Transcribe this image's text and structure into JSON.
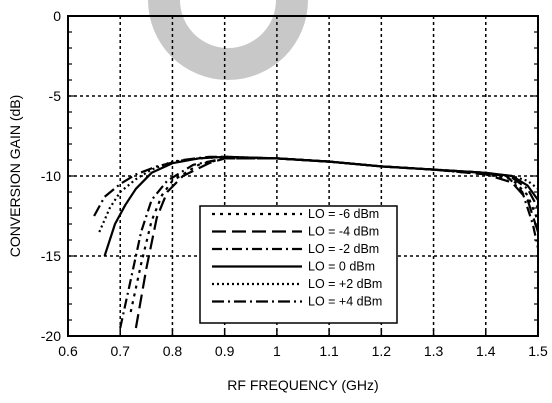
{
  "chart_data": {
    "type": "line",
    "title": "",
    "xlabel": "RF FREQUENCY (GHz)",
    "ylabel": "CONVERSION GAIN (dB)",
    "xlim": [
      0.6,
      1.5
    ],
    "ylim": [
      -20,
      0
    ],
    "x_ticks": [
      0.6,
      0.7,
      0.8,
      0.9,
      1,
      1.1,
      1.2,
      1.3,
      1.4,
      1.5
    ],
    "x_tick_labels": [
      "0.6",
      "0.7",
      "0.8",
      "0.9",
      "1",
      "1.1",
      "1.2",
      "1.3",
      "1.4",
      "1.5"
    ],
    "y_ticks": [
      0,
      -5,
      -10,
      -15,
      -20
    ],
    "y_tick_labels": [
      "0",
      "-5",
      "-10",
      "-15",
      "-20"
    ],
    "grid": true,
    "legend_position": "lower-center",
    "watermark_color": "#c8c8c8",
    "series": [
      {
        "name": "LO =  -6 dBm",
        "dash": "3,5",
        "points": [
          [
            0.72,
            -18.5
          ],
          [
            0.74,
            -15.5
          ],
          [
            0.76,
            -12.8
          ],
          [
            0.78,
            -11.2
          ],
          [
            0.8,
            -10.3
          ],
          [
            0.85,
            -9.3
          ],
          [
            0.9,
            -8.9
          ],
          [
            1.0,
            -8.9
          ],
          [
            1.1,
            -9.1
          ],
          [
            1.2,
            -9.4
          ],
          [
            1.3,
            -9.6
          ],
          [
            1.4,
            -9.9
          ],
          [
            1.45,
            -10.2
          ],
          [
            1.48,
            -11.2
          ],
          [
            1.5,
            -12.8
          ]
        ]
      },
      {
        "name": "LO =  -4 dBm",
        "dash": "14,6",
        "points": [
          [
            0.73,
            -19.5
          ],
          [
            0.75,
            -15.8
          ],
          [
            0.77,
            -12.6
          ],
          [
            0.79,
            -11.0
          ],
          [
            0.82,
            -10.0
          ],
          [
            0.87,
            -9.2
          ],
          [
            0.9,
            -8.9
          ],
          [
            1.0,
            -8.9
          ],
          [
            1.1,
            -9.1
          ],
          [
            1.2,
            -9.4
          ],
          [
            1.3,
            -9.6
          ],
          [
            1.4,
            -9.9
          ],
          [
            1.45,
            -10.4
          ],
          [
            1.48,
            -11.5
          ],
          [
            1.5,
            -13.5
          ]
        ]
      },
      {
        "name": "LO =  -2 dBm",
        "dash": "10,4,2,4",
        "points": [
          [
            0.7,
            -19.5
          ],
          [
            0.72,
            -16.5
          ],
          [
            0.74,
            -13.5
          ],
          [
            0.76,
            -11.5
          ],
          [
            0.79,
            -10.3
          ],
          [
            0.84,
            -9.3
          ],
          [
            0.9,
            -8.9
          ],
          [
            1.0,
            -8.9
          ],
          [
            1.1,
            -9.1
          ],
          [
            1.2,
            -9.4
          ],
          [
            1.3,
            -9.6
          ],
          [
            1.4,
            -9.8
          ],
          [
            1.44,
            -10.0
          ],
          [
            1.47,
            -11.0
          ],
          [
            1.49,
            -13.0
          ],
          [
            1.5,
            -14.5
          ]
        ]
      },
      {
        "name": "LO =  0 dBm",
        "dash": "",
        "points": [
          [
            0.67,
            -15.0
          ],
          [
            0.69,
            -13.0
          ],
          [
            0.71,
            -11.8
          ],
          [
            0.73,
            -10.8
          ],
          [
            0.76,
            -9.8
          ],
          [
            0.8,
            -9.2
          ],
          [
            0.85,
            -8.9
          ],
          [
            0.9,
            -8.8
          ],
          [
            1.0,
            -8.9
          ],
          [
            1.1,
            -9.1
          ],
          [
            1.2,
            -9.4
          ],
          [
            1.3,
            -9.6
          ],
          [
            1.4,
            -9.8
          ],
          [
            1.45,
            -10.0
          ],
          [
            1.48,
            -10.6
          ],
          [
            1.5,
            -11.5
          ]
        ]
      },
      {
        "name": "LO = +2 dBm",
        "dash": "2,3",
        "points": [
          [
            0.66,
            -13.5
          ],
          [
            0.68,
            -12.0
          ],
          [
            0.7,
            -11.0
          ],
          [
            0.73,
            -10.2
          ],
          [
            0.76,
            -9.6
          ],
          [
            0.8,
            -9.1
          ],
          [
            0.85,
            -8.9
          ],
          [
            0.9,
            -8.8
          ],
          [
            1.0,
            -8.9
          ],
          [
            1.1,
            -9.1
          ],
          [
            1.2,
            -9.4
          ],
          [
            1.3,
            -9.6
          ],
          [
            1.4,
            -9.8
          ],
          [
            1.45,
            -10.0
          ],
          [
            1.48,
            -10.3
          ],
          [
            1.5,
            -10.8
          ]
        ]
      },
      {
        "name": "LO = +4 dBm",
        "dash": "12,4,2,4",
        "points": [
          [
            0.65,
            -12.5
          ],
          [
            0.67,
            -11.3
          ],
          [
            0.7,
            -10.5
          ],
          [
            0.73,
            -9.9
          ],
          [
            0.77,
            -9.4
          ],
          [
            0.82,
            -9.0
          ],
          [
            0.87,
            -8.8
          ],
          [
            0.9,
            -8.8
          ],
          [
            1.0,
            -8.9
          ],
          [
            1.1,
            -9.1
          ],
          [
            1.2,
            -9.4
          ],
          [
            1.3,
            -9.6
          ],
          [
            1.4,
            -9.8
          ],
          [
            1.45,
            -10.1
          ],
          [
            1.48,
            -10.8
          ],
          [
            1.5,
            -12.0
          ]
        ]
      }
    ]
  }
}
